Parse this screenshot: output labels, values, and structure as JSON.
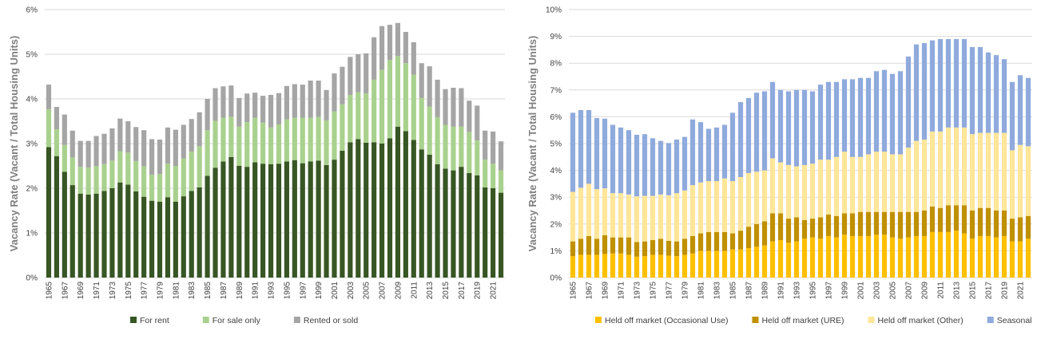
{
  "chart_data": [
    {
      "type": "bar",
      "stacked": true,
      "title": "",
      "xlabel": "",
      "ylabel": "Vacancy Rate (Vacant / Total Housing Units)",
      "ylim": [
        0,
        6
      ],
      "yticks": [
        "0%",
        "1%",
        "2%",
        "3%",
        "4%",
        "5%",
        "6%"
      ],
      "grid": true,
      "legend_position": "bottom",
      "categories": [
        "1965",
        "1966",
        "1967",
        "1968",
        "1969",
        "1970",
        "1971",
        "1972",
        "1973",
        "1974",
        "1975",
        "1976",
        "1977",
        "1978",
        "1979",
        "1980",
        "1981",
        "1982",
        "1983",
        "1984",
        "1985",
        "1986",
        "1987",
        "1988",
        "1989",
        "1990",
        "1991",
        "1992",
        "1993",
        "1994",
        "1995",
        "1996",
        "1997",
        "1998",
        "1999",
        "2000",
        "2001",
        "2002",
        "2003",
        "2004",
        "2005",
        "2006",
        "2007",
        "2008",
        "2009",
        "2010",
        "2011",
        "2012",
        "2013",
        "2014",
        "2015",
        "2016",
        "2017",
        "2018",
        "2019",
        "2020",
        "2021",
        "2022"
      ],
      "xtick_labels": [
        "1965",
        "1967",
        "1969",
        "1971",
        "1973",
        "1975",
        "1977",
        "1979",
        "1981",
        "1983",
        "1985",
        "1987",
        "1989",
        "1991",
        "1993",
        "1995",
        "1997",
        "1999",
        "2001",
        "2003",
        "2005",
        "2007",
        "2009",
        "2011",
        "2013",
        "2015",
        "2017",
        "2019",
        "2021"
      ],
      "series": [
        {
          "name": "For rent",
          "color": "#375623",
          "values": [
            2.92,
            2.72,
            2.37,
            2.07,
            1.88,
            1.86,
            1.88,
            1.94,
            2.0,
            2.13,
            2.08,
            1.93,
            1.81,
            1.72,
            1.7,
            1.8,
            1.7,
            1.82,
            1.94,
            2.02,
            2.28,
            2.46,
            2.6,
            2.7,
            2.5,
            2.48,
            2.58,
            2.55,
            2.54,
            2.55,
            2.6,
            2.63,
            2.56,
            2.6,
            2.62,
            2.52,
            2.64,
            2.84,
            3.03,
            3.1,
            3.02,
            3.03,
            3.0,
            3.12,
            3.38,
            3.28,
            3.08,
            2.87,
            2.75,
            2.54,
            2.44,
            2.4,
            2.48,
            2.34,
            2.29,
            2.02,
            2.0,
            1.9
          ]
        },
        {
          "name": "For sale only",
          "color": "#a9d18e",
          "values": [
            0.85,
            0.6,
            0.6,
            0.62,
            0.6,
            0.6,
            0.62,
            0.6,
            0.62,
            0.7,
            0.72,
            0.68,
            0.68,
            0.58,
            0.62,
            0.75,
            0.8,
            0.85,
            0.88,
            0.92,
            1.02,
            1.05,
            0.98,
            0.9,
            0.88,
            1.0,
            1.0,
            0.92,
            0.82,
            0.88,
            0.94,
            0.95,
            1.02,
            0.98,
            0.98,
            1.0,
            1.08,
            1.04,
            1.06,
            1.05,
            1.1,
            1.4,
            1.65,
            1.75,
            1.58,
            1.52,
            1.46,
            1.15,
            1.08,
            1.05,
            0.98,
            0.98,
            0.9,
            0.92,
            0.78,
            0.62,
            0.55,
            0.5
          ]
        },
        {
          "name": "Rented or sold",
          "color": "#a5a5a5",
          "values": [
            0.55,
            0.5,
            0.68,
            0.6,
            0.58,
            0.6,
            0.67,
            0.68,
            0.72,
            0.73,
            0.7,
            0.76,
            0.81,
            0.8,
            0.77,
            0.81,
            0.81,
            0.75,
            0.73,
            0.76,
            0.7,
            0.73,
            0.7,
            0.7,
            0.64,
            0.64,
            0.56,
            0.6,
            0.73,
            0.7,
            0.75,
            0.75,
            0.74,
            0.83,
            0.81,
            0.68,
            0.85,
            0.84,
            0.85,
            0.85,
            0.9,
            0.95,
            0.98,
            0.79,
            0.74,
            0.7,
            0.73,
            0.78,
            0.9,
            0.84,
            0.8,
            0.87,
            0.86,
            0.7,
            0.78,
            0.65,
            0.72,
            0.65
          ]
        }
      ],
      "legend": [
        "For rent",
        "For sale only",
        "Rented or sold"
      ]
    },
    {
      "type": "bar",
      "stacked": true,
      "title": "",
      "xlabel": "",
      "ylabel": "Vacancy Rate (Vacant / Total Housing Units)",
      "ylim": [
        0,
        10
      ],
      "yticks": [
        "0%",
        "1%",
        "2%",
        "3%",
        "4%",
        "5%",
        "6%",
        "7%",
        "8%",
        "9%",
        "10%"
      ],
      "grid": true,
      "legend_position": "bottom",
      "categories": [
        "1965",
        "1966",
        "1967",
        "1968",
        "1969",
        "1970",
        "1971",
        "1972",
        "1973",
        "1974",
        "1975",
        "1976",
        "1977",
        "1978",
        "1979",
        "1980",
        "1981",
        "1982",
        "1983",
        "1984",
        "1985",
        "1986",
        "1987",
        "1988",
        "1989",
        "1990",
        "1991",
        "1992",
        "1993",
        "1994",
        "1995",
        "1996",
        "1997",
        "1998",
        "1999",
        "2000",
        "2001",
        "2002",
        "2003",
        "2004",
        "2005",
        "2006",
        "2007",
        "2008",
        "2009",
        "2010",
        "2011",
        "2012",
        "2013",
        "2014",
        "2015",
        "2016",
        "2017",
        "2018",
        "2019",
        "2020",
        "2021",
        "2022"
      ],
      "xtick_labels": [
        "1965",
        "1967",
        "1969",
        "1971",
        "1973",
        "1975",
        "1977",
        "1979",
        "1981",
        "1983",
        "1985",
        "1987",
        "1989",
        "1991",
        "1993",
        "1995",
        "1997",
        "1999",
        "2001",
        "2003",
        "2005",
        "2007",
        "2009",
        "2011",
        "2013",
        "2015",
        "2017",
        "2019",
        "2021"
      ],
      "series": [
        {
          "name": "Held off market (Occasional Use)",
          "color": "#ffc000",
          "values": [
            0.8,
            0.85,
            0.85,
            0.85,
            0.88,
            0.9,
            0.9,
            0.85,
            0.78,
            0.8,
            0.85,
            0.85,
            0.82,
            0.8,
            0.85,
            0.9,
            1.0,
            1.0,
            1.0,
            1.0,
            1.05,
            1.05,
            1.1,
            1.15,
            1.2,
            1.35,
            1.4,
            1.3,
            1.35,
            1.45,
            1.5,
            1.45,
            1.55,
            1.5,
            1.6,
            1.55,
            1.55,
            1.55,
            1.6,
            1.6,
            1.5,
            1.45,
            1.5,
            1.55,
            1.55,
            1.7,
            1.7,
            1.7,
            1.75,
            1.65,
            1.45,
            1.55,
            1.55,
            1.5,
            1.55,
            1.35,
            1.35,
            1.45
          ]
        },
        {
          "name": "Held off market (URE)",
          "color": "#bf9000",
          "values": [
            0.55,
            0.6,
            0.7,
            0.6,
            0.7,
            0.6,
            0.6,
            0.65,
            0.55,
            0.55,
            0.55,
            0.6,
            0.55,
            0.55,
            0.6,
            0.65,
            0.65,
            0.7,
            0.7,
            0.7,
            0.6,
            0.7,
            0.8,
            0.85,
            0.9,
            1.05,
            1.0,
            0.9,
            0.9,
            0.7,
            0.7,
            0.8,
            0.8,
            0.8,
            0.8,
            0.85,
            0.9,
            0.9,
            0.85,
            0.85,
            0.95,
            1.0,
            0.95,
            0.9,
            0.95,
            0.95,
            0.9,
            1.0,
            0.95,
            1.05,
            1.05,
            1.05,
            1.05,
            1.0,
            0.95,
            0.85,
            0.9,
            0.85
          ]
        },
        {
          "name": "Held off market (Other)",
          "color": "#ffe699",
          "values": [
            1.85,
            1.9,
            1.95,
            1.85,
            1.75,
            1.65,
            1.65,
            1.6,
            1.7,
            1.7,
            1.65,
            1.65,
            1.7,
            1.8,
            1.8,
            1.9,
            1.9,
            1.9,
            1.9,
            2.0,
            1.95,
            2.0,
            2.0,
            1.95,
            1.9,
            2.05,
            1.9,
            2.0,
            1.9,
            2.05,
            2.05,
            2.15,
            2.05,
            2.2,
            2.3,
            2.1,
            2.05,
            2.15,
            2.25,
            2.25,
            2.15,
            2.15,
            2.4,
            2.65,
            2.65,
            2.8,
            2.85,
            2.9,
            2.9,
            2.9,
            2.85,
            2.8,
            2.8,
            2.9,
            2.9,
            2.55,
            2.7,
            2.6
          ]
        },
        {
          "name": "Seasonal",
          "color": "#8faadc",
          "values": [
            2.95,
            2.9,
            2.75,
            2.65,
            2.6,
            2.55,
            2.45,
            2.4,
            2.3,
            2.3,
            2.15,
            2.0,
            1.95,
            2.0,
            2.0,
            2.45,
            2.25,
            1.95,
            2.0,
            2.0,
            2.55,
            2.8,
            2.8,
            2.95,
            2.95,
            2.85,
            2.7,
            2.75,
            2.85,
            2.8,
            2.7,
            2.8,
            2.9,
            2.8,
            2.7,
            2.9,
            2.95,
            2.85,
            3.0,
            3.05,
            3.0,
            3.1,
            3.4,
            3.6,
            3.6,
            3.4,
            3.45,
            3.3,
            3.3,
            3.3,
            3.25,
            3.2,
            3.0,
            2.9,
            2.75,
            2.55,
            2.6,
            2.55
          ]
        }
      ],
      "legend": [
        "Held off market (Occasional Use)",
        "Held off market (URE)",
        "Held off market (Other)",
        "Seasonal"
      ]
    }
  ]
}
